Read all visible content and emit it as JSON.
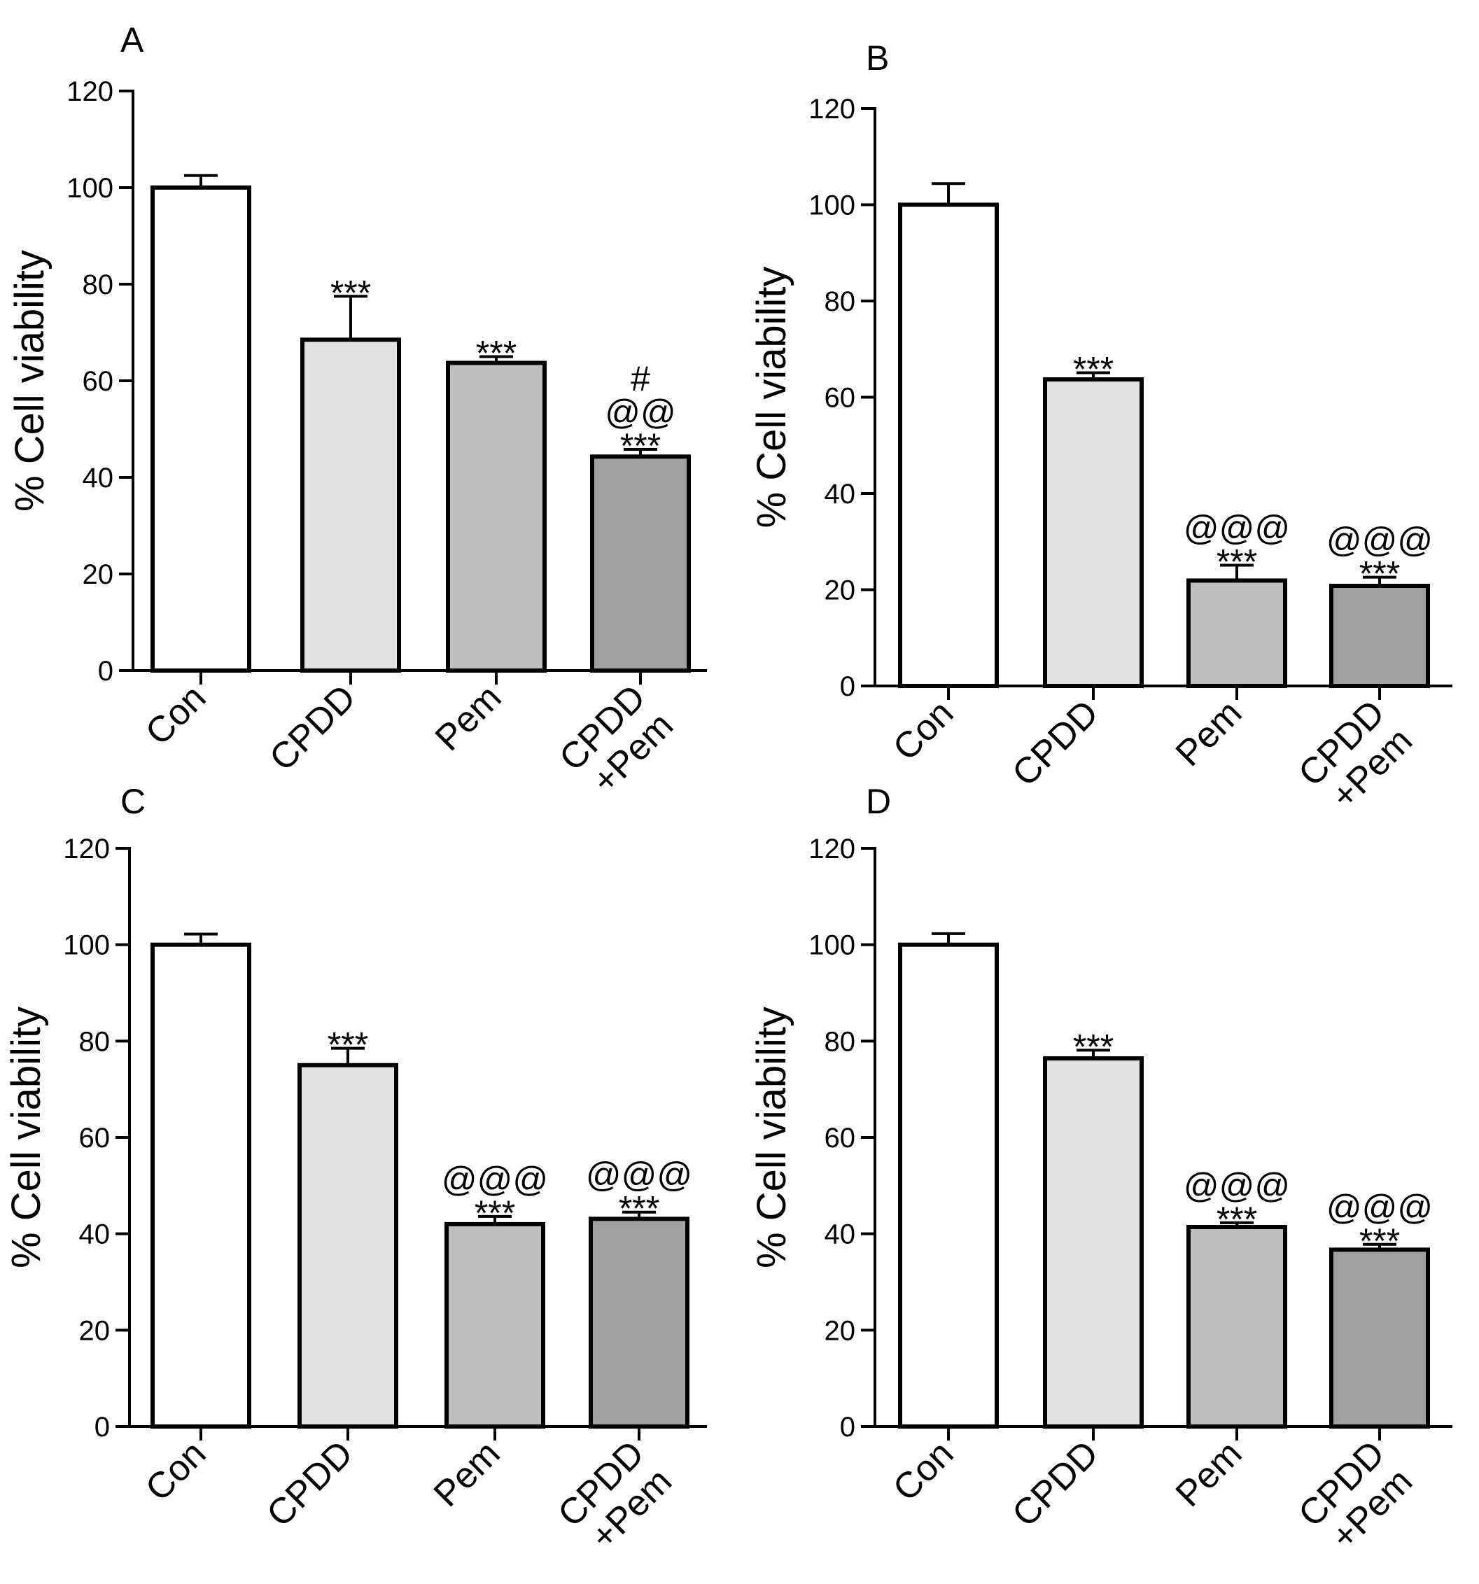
{
  "colors": {
    "axis": "#000000",
    "bar_fills": [
      "#ffffff",
      "#e2e2e2",
      "#bdbdbd",
      "#a1a1a1"
    ]
  },
  "chart_data": [
    {
      "panel": "A",
      "type": "bar",
      "ylabel": "% Cell viability",
      "ylim": [
        0,
        120
      ],
      "yticks": [
        0,
        20,
        40,
        60,
        80,
        100,
        120
      ],
      "categories": [
        [
          "Con"
        ],
        [
          "CPDD"
        ],
        [
          "Pem"
        ],
        [
          "CPDD",
          "+Pem"
        ]
      ],
      "values": [
        100,
        68.5,
        63.7,
        44.3
      ],
      "errors": [
        2.5,
        9.0,
        1.3,
        1.5
      ],
      "annotations": [
        [],
        [
          "***"
        ],
        [
          "***"
        ],
        [
          "***",
          "@@",
          "#"
        ]
      ]
    },
    {
      "panel": "B",
      "type": "bar",
      "ylabel": "% Cell viability",
      "ylim": [
        0,
        120
      ],
      "yticks": [
        0,
        20,
        40,
        60,
        80,
        100,
        120
      ],
      "categories": [
        [
          "Con"
        ],
        [
          "CPDD"
        ],
        [
          "Pem"
        ],
        [
          "CPDD",
          "+Pem"
        ]
      ],
      "values": [
        100,
        63.7,
        21.9,
        20.8
      ],
      "errors": [
        4.4,
        1.4,
        3.2,
        1.8
      ],
      "annotations": [
        [],
        [
          "***"
        ],
        [
          "***",
          "@@@"
        ],
        [
          "***",
          "@@@"
        ]
      ]
    },
    {
      "panel": "C",
      "type": "bar",
      "ylabel": "% Cell viability",
      "ylim": [
        0,
        120
      ],
      "yticks": [
        0,
        20,
        40,
        60,
        80,
        100,
        120
      ],
      "categories": [
        [
          "Con"
        ],
        [
          "CPDD"
        ],
        [
          "Pem"
        ],
        [
          "CPDD",
          "+Pem"
        ]
      ],
      "values": [
        100,
        75.0,
        42.0,
        43.1
      ],
      "errors": [
        2.2,
        3.5,
        1.6,
        1.4
      ],
      "annotations": [
        [],
        [
          "***"
        ],
        [
          "***",
          "@@@"
        ],
        [
          "***",
          "@@@"
        ]
      ]
    },
    {
      "panel": "D",
      "type": "bar",
      "ylabel": "% Cell viability",
      "ylim": [
        0,
        120
      ],
      "yticks": [
        0,
        20,
        40,
        60,
        80,
        100,
        120
      ],
      "categories": [
        [
          "Con"
        ],
        [
          "CPDD"
        ],
        [
          "Pem"
        ],
        [
          "CPDD",
          "+Pem"
        ]
      ],
      "values": [
        100,
        76.4,
        41.4,
        36.7
      ],
      "errors": [
        2.3,
        1.7,
        0.9,
        1.1
      ],
      "annotations": [
        [],
        [
          "***"
        ],
        [
          "***",
          "@@@"
        ],
        [
          "***",
          "@@@"
        ]
      ]
    }
  ]
}
